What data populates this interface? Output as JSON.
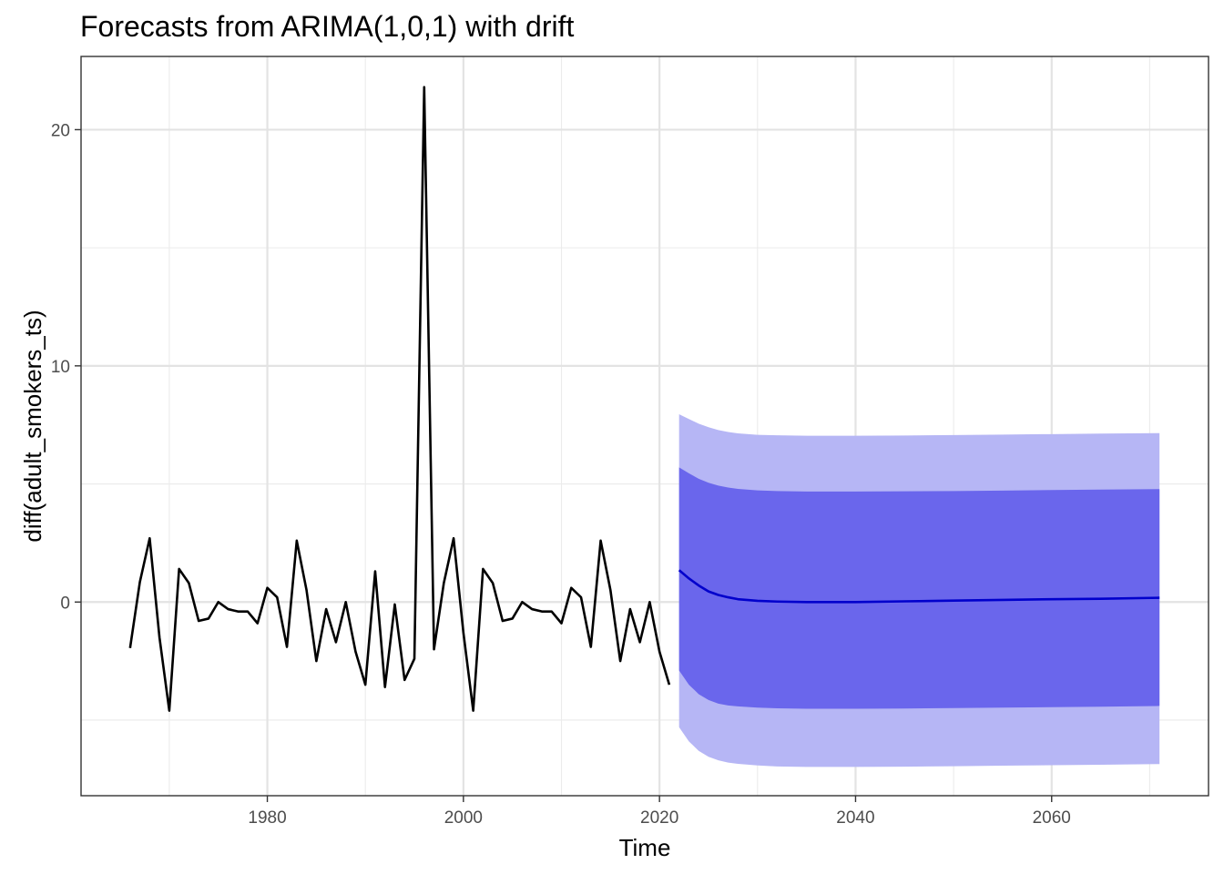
{
  "chart_data": {
    "type": "line",
    "title": "Forecasts from ARIMA(1,0,1) with drift",
    "xlabel": "Time",
    "ylabel": "diff(adult_smokers_ts)",
    "xlim": [
      1961,
      2076
    ],
    "ylim": [
      -8.2,
      23.1
    ],
    "x_ticks": [
      1980,
      2000,
      2020,
      2040,
      2060
    ],
    "y_ticks": [
      0,
      10,
      20
    ],
    "grid": true,
    "series": [
      {
        "role": "observed",
        "color": "#000000",
        "x": [
          1966,
          1967,
          1968,
          1969,
          1970,
          1971,
          1972,
          1973,
          1974,
          1975,
          1976,
          1977,
          1978,
          1979,
          1980,
          1981,
          1982,
          1983,
          1984,
          1985,
          1986,
          1987,
          1988,
          1989,
          1990,
          1991,
          1992,
          1993,
          1994,
          1995,
          1996,
          1997,
          1998,
          1999,
          2000,
          2001,
          2002,
          2003,
          2004,
          2005,
          2006,
          2007,
          2008,
          2009,
          2010,
          2011,
          2012,
          2013,
          2014,
          2015,
          2016,
          2017,
          2018,
          2019,
          2020,
          2021
        ],
        "y": [
          -1.95,
          0.85,
          2.7,
          -1.5,
          -4.6,
          1.4,
          0.8,
          -0.8,
          -0.7,
          0.0,
          -0.3,
          -0.4,
          -0.4,
          -0.9,
          0.6,
          0.2,
          -1.9,
          2.6,
          0.5,
          -2.5,
          -0.3,
          -1.7,
          0.0,
          -2.1,
          -3.5,
          1.3,
          -3.6,
          -0.1,
          -3.3,
          -2.4,
          21.8,
          -2.0,
          0.8,
          2.7,
          -1.3,
          -4.6,
          1.4,
          0.8,
          -0.8,
          -0.7,
          0.0,
          -0.3,
          -0.4,
          -0.4,
          -0.9,
          0.6,
          0.2,
          -1.9,
          2.6,
          0.5,
          -2.5,
          -0.3,
          -1.7,
          0.0,
          -2.1,
          -3.5
        ]
      },
      {
        "role": "forecast-mean",
        "color": "#0000cc",
        "x": [
          2022,
          2023,
          2024,
          2025,
          2026,
          2027,
          2028,
          2030,
          2032,
          2035,
          2040,
          2045,
          2050,
          2055,
          2060,
          2065,
          2071
        ],
        "y": [
          1.35,
          1.0,
          0.7,
          0.45,
          0.3,
          0.2,
          0.12,
          0.05,
          0.02,
          0.0,
          0.0,
          0.03,
          0.06,
          0.09,
          0.12,
          0.14,
          0.18
        ]
      }
    ],
    "intervals": [
      {
        "role": "95-percent-band",
        "color": "#b6b6f5",
        "x": [
          2022,
          2023,
          2024,
          2025,
          2026,
          2027,
          2028,
          2030,
          2032,
          2035,
          2040,
          2045,
          2050,
          2055,
          2060,
          2065,
          2071
        ],
        "lower": [
          -5.3,
          -5.9,
          -6.3,
          -6.55,
          -6.7,
          -6.8,
          -6.85,
          -6.92,
          -6.96,
          -6.98,
          -6.98,
          -6.97,
          -6.95,
          -6.93,
          -6.91,
          -6.89,
          -6.86
        ],
        "upper": [
          7.95,
          7.75,
          7.55,
          7.4,
          7.28,
          7.2,
          7.14,
          7.08,
          7.06,
          7.04,
          7.04,
          7.05,
          7.07,
          7.09,
          7.11,
          7.13,
          7.15
        ]
      },
      {
        "role": "80-percent-band",
        "color": "#6a66ec",
        "x": [
          2022,
          2023,
          2024,
          2025,
          2026,
          2027,
          2028,
          2030,
          2032,
          2035,
          2040,
          2045,
          2050,
          2055,
          2060,
          2065,
          2071
        ],
        "lower": [
          -2.9,
          -3.5,
          -3.9,
          -4.15,
          -4.3,
          -4.38,
          -4.42,
          -4.47,
          -4.5,
          -4.52,
          -4.52,
          -4.51,
          -4.49,
          -4.47,
          -4.45,
          -4.43,
          -4.4
        ],
        "upper": [
          5.7,
          5.45,
          5.22,
          5.05,
          4.93,
          4.85,
          4.79,
          4.73,
          4.7,
          4.68,
          4.68,
          4.69,
          4.7,
          4.72,
          4.74,
          4.76,
          4.78
        ]
      }
    ]
  }
}
